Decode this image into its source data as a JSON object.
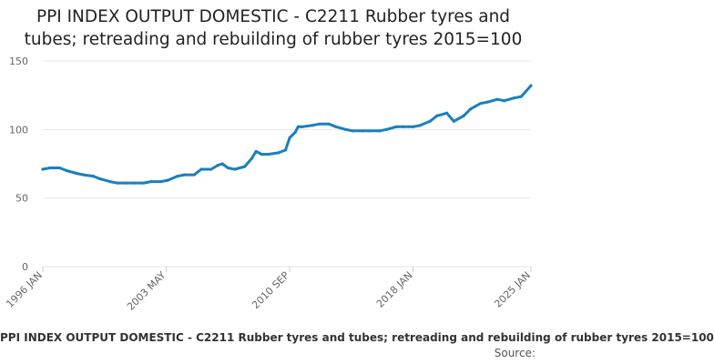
{
  "title_lines": [
    "PPI INDEX OUTPUT DOMESTIC - C2211 Rubber tyres and",
    "tubes; retreading and rebuilding of rubber tyres 2015=100"
  ],
  "legend_text": "PPI INDEX OUTPUT DOMESTIC - C2211 Rubber tyres and tubes; retreading and rebuilding of rubber tyres 2015=100",
  "source_label": "Source:",
  "colors": {
    "series": "#1a7fc1",
    "grid": "#e6e6e6",
    "axis_text": "#666666"
  },
  "chart_data": {
    "type": "line",
    "title": "PPI INDEX OUTPUT DOMESTIC - C2211 Rubber tyres and tubes; retreading and rebuilding of rubber tyres 2015=100",
    "xlabel": "",
    "ylabel": "",
    "ylim": [
      0,
      150
    ],
    "y_ticks": [
      0,
      50,
      100,
      150
    ],
    "x_ticks": [
      "1996 JAN",
      "2003 MAY",
      "2010 SEP",
      "2018 JAN",
      "2025 JAN"
    ],
    "grid": true,
    "legend": "bottom",
    "series": [
      {
        "name": "PPI INDEX OUTPUT DOMESTIC - C2211 Rubber tyres and tubes; retreading and rebuilding of rubber tyres 2015=100",
        "x": [
          "1996-01",
          "1996-06",
          "1997-01",
          "1997-06",
          "1998-01",
          "1998-06",
          "1999-01",
          "1999-06",
          "2000-01",
          "2000-06",
          "2001-01",
          "2001-06",
          "2002-01",
          "2002-06",
          "2003-01",
          "2003-06",
          "2004-01",
          "2004-06",
          "2005-01",
          "2005-06",
          "2006-01",
          "2006-06",
          "2006-09",
          "2007-01",
          "2007-06",
          "2008-01",
          "2008-06",
          "2008-09",
          "2009-01",
          "2009-06",
          "2010-01",
          "2010-06",
          "2010-09",
          "2011-01",
          "2011-03",
          "2011-06",
          "2012-01",
          "2012-06",
          "2013-01",
          "2013-06",
          "2014-01",
          "2014-06",
          "2015-01",
          "2015-06",
          "2016-01",
          "2016-06",
          "2017-01",
          "2017-06",
          "2018-01",
          "2018-06",
          "2019-01",
          "2019-06",
          "2020-01",
          "2020-06",
          "2021-01",
          "2021-06",
          "2022-01",
          "2022-06",
          "2023-01",
          "2023-06",
          "2024-01",
          "2024-06",
          "2025-01"
        ],
        "values": [
          71,
          72,
          72,
          70,
          68,
          67,
          66,
          64,
          62,
          61,
          61,
          61,
          61,
          62,
          62,
          63,
          66,
          67,
          67,
          71,
          71,
          74,
          75,
          72,
          71,
          73,
          79,
          84,
          82,
          82,
          83,
          85,
          94,
          98,
          102,
          102,
          103,
          104,
          104,
          102,
          100,
          99,
          99,
          99,
          99,
          100,
          102,
          102,
          102,
          103,
          106,
          110,
          112,
          106,
          110,
          115,
          119,
          120,
          122,
          121,
          123,
          124,
          132
        ]
      }
    ]
  }
}
